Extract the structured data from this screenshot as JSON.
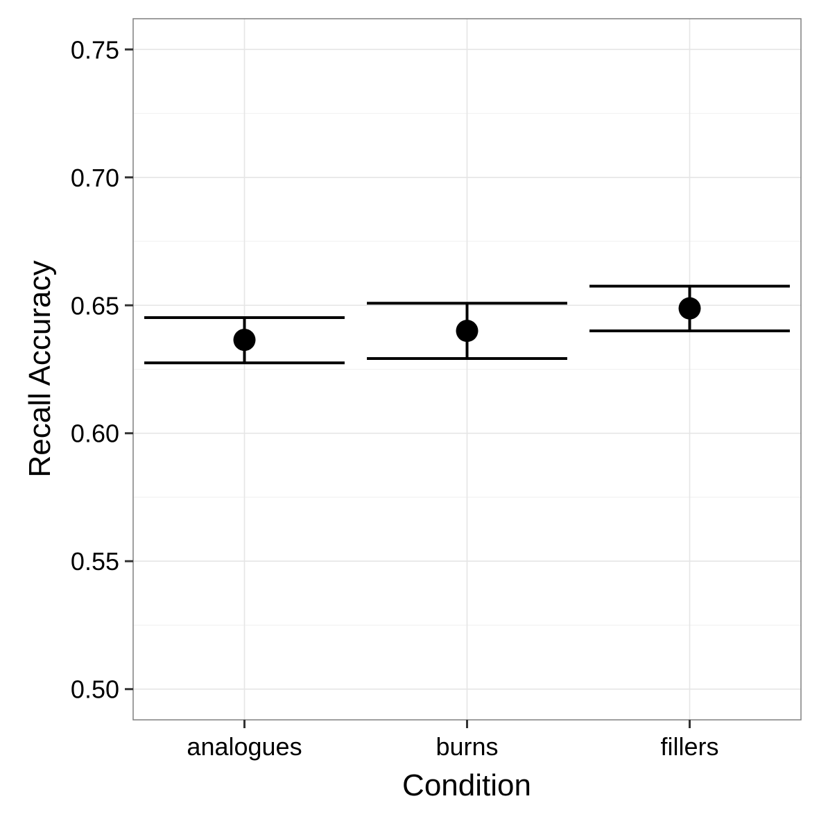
{
  "chart_data": {
    "type": "scatter",
    "title": "",
    "xlabel": "Condition",
    "ylabel": "Recall Accuracy",
    "categories": [
      "analogues",
      "burns",
      "fillers"
    ],
    "series": [
      {
        "values": [
          0.6365,
          0.64,
          0.6488
        ],
        "error_low": [
          0.6275,
          0.6292,
          0.64
        ],
        "error_high": [
          0.6452,
          0.6508,
          0.6575
        ]
      }
    ],
    "ylim": [
      0.488,
      0.762
    ],
    "yticks": [
      0.5,
      0.55,
      0.6,
      0.65,
      0.7,
      0.75
    ],
    "ytick_labels": [
      "0.50",
      "0.55",
      "0.60",
      "0.65",
      "0.70",
      "0.75"
    ],
    "grid": true,
    "legend": "none",
    "colors": {
      "point": "#000000",
      "errorbar": "#000000",
      "grid_major": "#e5e5e5",
      "grid_minor": "#f2f2f2",
      "panel_border": "#7f7f7f"
    }
  }
}
